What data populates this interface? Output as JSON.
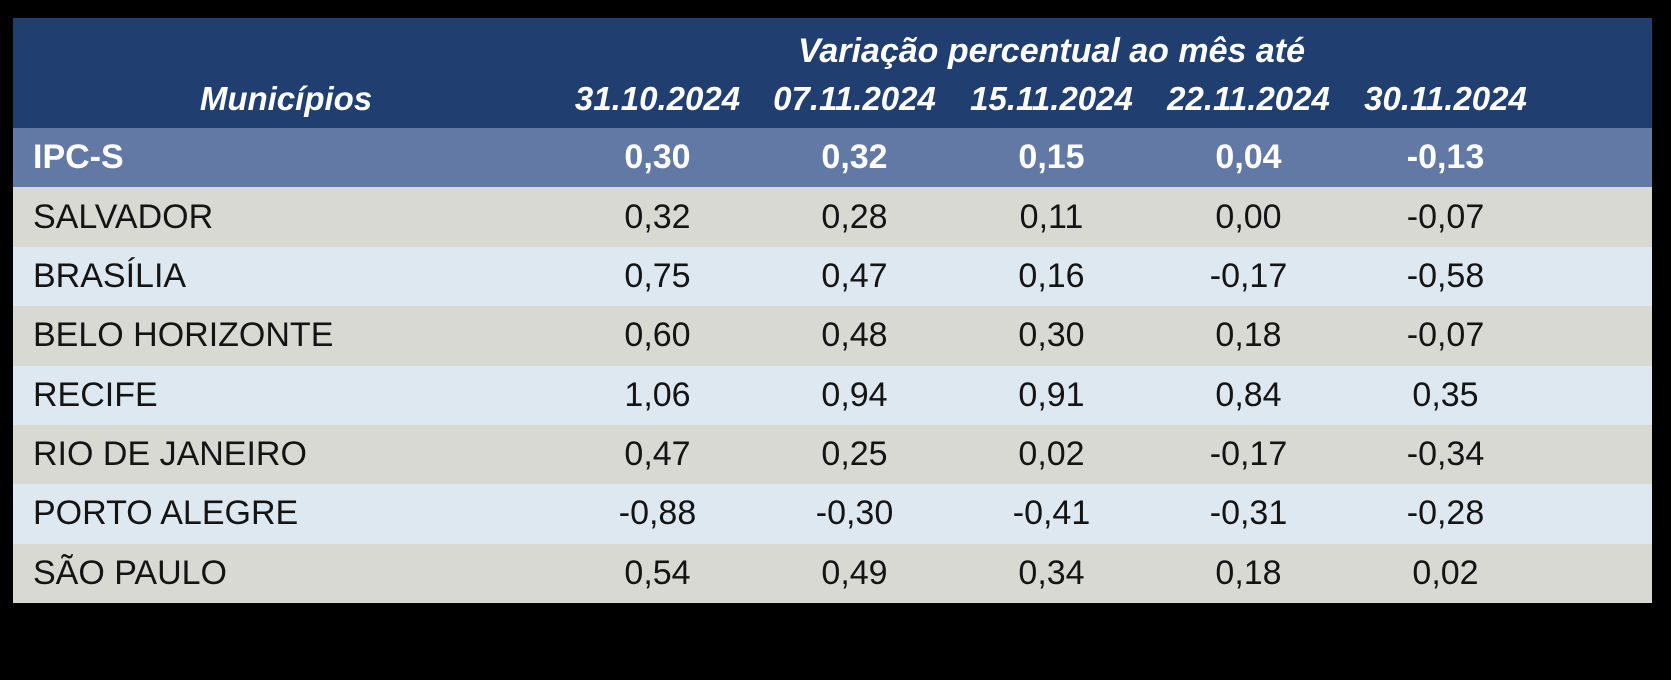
{
  "table": {
    "title": "Variação percentual ao mês até",
    "municipality_header": "Municípios",
    "date_columns": [
      "31.10.2024",
      "07.11.2024",
      "15.11.2024",
      "22.11.2024",
      "30.11.2024"
    ],
    "rows": [
      {
        "name": "IPC-S",
        "values": [
          "0,30",
          "0,32",
          "0,15",
          "0,04",
          "-0,13"
        ],
        "highlight": true
      },
      {
        "name": "SALVADOR",
        "values": [
          "0,32",
          "0,28",
          "0,11",
          "0,00",
          "-0,07"
        ],
        "highlight": false
      },
      {
        "name": "BRASÍLIA",
        "values": [
          "0,75",
          "0,47",
          "0,16",
          "-0,17",
          "-0,58"
        ],
        "highlight": false
      },
      {
        "name": "BELO HORIZONTE",
        "values": [
          "0,60",
          "0,48",
          "0,30",
          "0,18",
          "-0,07"
        ],
        "highlight": false
      },
      {
        "name": "RECIFE",
        "values": [
          "1,06",
          "0,94",
          "0,91",
          "0,84",
          "0,35"
        ],
        "highlight": false
      },
      {
        "name": "RIO DE JANEIRO",
        "values": [
          "0,47",
          "0,25",
          "0,02",
          "-0,17",
          "-0,34"
        ],
        "highlight": false
      },
      {
        "name": "PORTO ALEGRE",
        "values": [
          "-0,88",
          "-0,30",
          "-0,41",
          "-0,31",
          "-0,28"
        ],
        "highlight": false
      },
      {
        "name": "SÃO PAULO",
        "values": [
          "0,54",
          "0,49",
          "0,34",
          "0,18",
          "0,02"
        ],
        "highlight": false
      }
    ]
  },
  "chart_data": {
    "type": "table",
    "title": "Variação percentual ao mês até",
    "row_header_label": "Municípios",
    "columns": [
      "31.10.2024",
      "07.11.2024",
      "15.11.2024",
      "22.11.2024",
      "30.11.2024"
    ],
    "series": [
      {
        "name": "IPC-S",
        "values": [
          0.3,
          0.32,
          0.15,
          0.04,
          -0.13
        ]
      },
      {
        "name": "SALVADOR",
        "values": [
          0.32,
          0.28,
          0.11,
          0.0,
          -0.07
        ]
      },
      {
        "name": "BRASÍLIA",
        "values": [
          0.75,
          0.47,
          0.16,
          -0.17,
          -0.58
        ]
      },
      {
        "name": "BELO HORIZONTE",
        "values": [
          0.6,
          0.48,
          0.3,
          0.18,
          -0.07
        ]
      },
      {
        "name": "RECIFE",
        "values": [
          1.06,
          0.94,
          0.91,
          0.84,
          0.35
        ]
      },
      {
        "name": "RIO DE JANEIRO",
        "values": [
          0.47,
          0.25,
          0.02,
          -0.17,
          -0.34
        ]
      },
      {
        "name": "PORTO ALEGRE",
        "values": [
          -0.88,
          -0.3,
          -0.41,
          -0.31,
          -0.28
        ]
      },
      {
        "name": "SÃO PAULO",
        "values": [
          0.54,
          0.49,
          0.34,
          0.18,
          0.02
        ]
      }
    ],
    "decimal_separator": ",",
    "notes": "Values shown with comma decimals in UI"
  },
  "colors": {
    "page_background": "#000000",
    "header_background": "#203f70",
    "ipcs_row_background": "#6179a4",
    "gray_row_background": "#d9d9d4",
    "blue_row_background": "#dee8f1",
    "header_text": "#ffffff",
    "body_text": "#141414"
  }
}
